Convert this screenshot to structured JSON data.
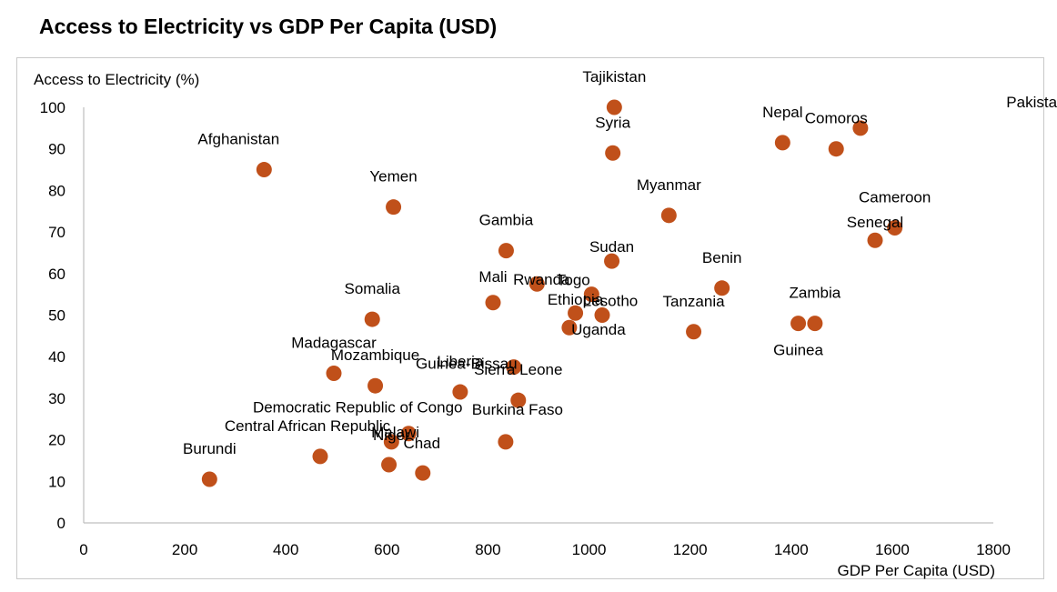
{
  "chart_data": {
    "type": "scatter",
    "title": "Access to Electricity vs GDP Per Capita (USD)",
    "xlabel": "GDP Per Capita (USD)",
    "ylabel": "Access to Electricity (%)",
    "xlim": [
      0,
      1800
    ],
    "ylim": [
      0,
      100
    ],
    "xticks": [
      "0",
      "200",
      "400",
      "600",
      "800",
      "1000",
      "1200",
      "1400",
      "1600",
      "1800"
    ],
    "yticks": [
      "0",
      "10",
      "20",
      "30",
      "40",
      "50",
      "60",
      "70",
      "80",
      "90",
      "100"
    ],
    "grid": false,
    "marker_color": "#C0501A",
    "points": [
      {
        "label": "Tajikistan",
        "x": 1050,
        "y": 100
      },
      {
        "label": "Syria",
        "x": 1047,
        "y": 89
      },
      {
        "label": "Afghanistan",
        "x": 357,
        "y": 85
      },
      {
        "label": "Yemen",
        "x": 613,
        "y": 76
      },
      {
        "label": "Gambia",
        "x": 836,
        "y": 65.5
      },
      {
        "label": "Myanmar",
        "x": 1158,
        "y": 74
      },
      {
        "label": "Nepal",
        "x": 1383,
        "y": 91.5
      },
      {
        "label": "Comoros",
        "x": 1489,
        "y": 90
      },
      {
        "label": "Pakistan",
        "x": 1537,
        "y": 95
      },
      {
        "label": "Cameroon",
        "x": 1605,
        "y": 71
      },
      {
        "label": "Senegal",
        "x": 1566,
        "y": 68
      },
      {
        "label": "Sudan",
        "x": 1045,
        "y": 63
      },
      {
        "label": "Togo",
        "x": 1005,
        "y": 55
      },
      {
        "label": "Ethiopia",
        "x": 973,
        "y": 50.5
      },
      {
        "label": "Rwanda",
        "x": 897,
        "y": 57.5
      },
      {
        "label": "Lesotho",
        "x": 1026,
        "y": 50
      },
      {
        "label": "Mali",
        "x": 810,
        "y": 53
      },
      {
        "label": "Benin",
        "x": 1263,
        "y": 56.5
      },
      {
        "label": "Tanzania",
        "x": 1207,
        "y": 46
      },
      {
        "label": "Zambia",
        "x": 1447,
        "y": 48
      },
      {
        "label": "Guinea",
        "x": 1414,
        "y": 48
      },
      {
        "label": "Uganda",
        "x": 961,
        "y": 47
      },
      {
        "label": "Guinea-Bissau",
        "x": 851,
        "y": 37.5
      },
      {
        "label": "Somalia",
        "x": 571,
        "y": 49
      },
      {
        "label": "Madagascar",
        "x": 495,
        "y": 36
      },
      {
        "label": "Mozambique",
        "x": 577,
        "y": 33
      },
      {
        "label": "Democratic Republic of Congo",
        "x": 643,
        "y": 21.5
      },
      {
        "label": "Liberia",
        "x": 745,
        "y": 31.5
      },
      {
        "label": "Sierra Leone",
        "x": 860,
        "y": 29.5
      },
      {
        "label": "Burkina Faso",
        "x": 835,
        "y": 19.5
      },
      {
        "label": "Central African Republic",
        "x": 468,
        "y": 16
      },
      {
        "label": "Niger",
        "x": 609,
        "y": 19.5
      },
      {
        "label": "Malawi",
        "x": 604,
        "y": 14
      },
      {
        "label": "Chad",
        "x": 671,
        "y": 12
      },
      {
        "label": "Burundi",
        "x": 249,
        "y": 10.5
      }
    ]
  }
}
